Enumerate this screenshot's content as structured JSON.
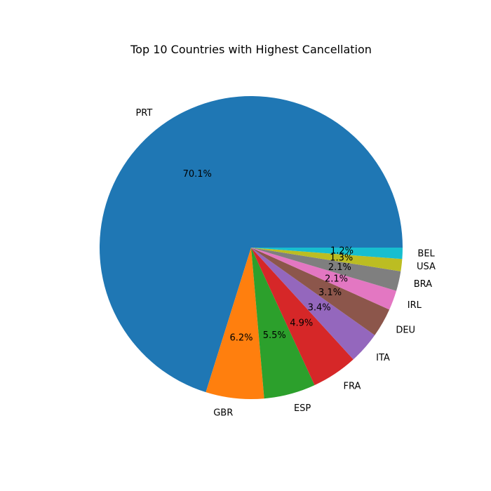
{
  "chart_data": {
    "type": "pie",
    "title": "Top 10 Countries with Highest Cancellation",
    "slices": [
      {
        "label": "PRT",
        "value": 70.1,
        "pct_text": "70.1%",
        "color": "#1f77b4"
      },
      {
        "label": "GBR",
        "value": 6.2,
        "pct_text": "6.2%",
        "color": "#ff7f0e"
      },
      {
        "label": "ESP",
        "value": 5.5,
        "pct_text": "5.5%",
        "color": "#2ca02c"
      },
      {
        "label": "FRA",
        "value": 4.9,
        "pct_text": "4.9%",
        "color": "#d62728"
      },
      {
        "label": "ITA",
        "value": 3.4,
        "pct_text": "3.4%",
        "color": "#9467bd"
      },
      {
        "label": "DEU",
        "value": 3.1,
        "pct_text": "3.1%",
        "color": "#8c564b"
      },
      {
        "label": "IRL",
        "value": 2.1,
        "pct_text": "2.1%",
        "color": "#e377c2"
      },
      {
        "label": "BRA",
        "value": 2.1,
        "pct_text": "2.1%",
        "color": "#7f7f7f"
      },
      {
        "label": "USA",
        "value": 1.3,
        "pct_text": "1.3%",
        "color": "#bcbd22"
      },
      {
        "label": "BEL",
        "value": 1.2,
        "pct_text": "1.2%",
        "color": "#17becf"
      }
    ],
    "start_angle_deg": 0,
    "direction": "counterclockwise"
  }
}
